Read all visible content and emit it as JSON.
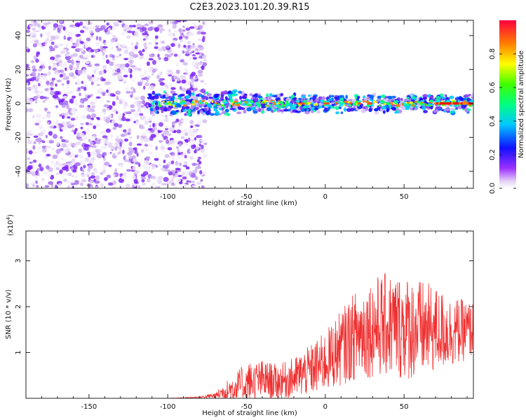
{
  "title": "C2E3.2023.101.20.39.R15",
  "chart_data": [
    {
      "type": "heatmap",
      "title": "C2E3.2023.101.20.39.R15",
      "xlabel": "Height of straight line (km)",
      "ylabel": "Frequency (Hz)",
      "xlim": [
        -190,
        94
      ],
      "ylim": [
        -50,
        49
      ],
      "xticks": [
        -150,
        -100,
        -50,
        0,
        50
      ],
      "yticks": [
        -40,
        -20,
        0,
        20,
        40
      ],
      "xtick_labels": [
        "-150",
        "-100",
        "-50",
        "0",
        "50"
      ],
      "ytick_labels": [
        "-40",
        "-20",
        "0",
        "20",
        "40"
      ],
      "features": {
        "noise_region_x": [
          -190,
          -82
        ],
        "signal_band_x": [
          -112,
          94
        ],
        "signal_center_freq_hz": 0,
        "max_amplitude_x": [
          70,
          94
        ]
      },
      "colorbar": {
        "label": "Normalized spectral amplitude",
        "range": [
          0.0,
          1.0
        ],
        "ticks": [
          0.0,
          0.2,
          0.4,
          0.6,
          0.8
        ],
        "tick_labels": [
          "0.0",
          "0.2",
          "0.4",
          "0.6",
          "0.8"
        ]
      }
    },
    {
      "type": "line",
      "xlabel": "Height of straight line (km)",
      "ylabel": "SNR (10 * v/v)",
      "scale_label": "(x10",
      "scale_exponent": "4",
      "scale_close": ")",
      "xlim": [
        -190,
        94
      ],
      "ylim": [
        0,
        3.65
      ],
      "xticks": [
        -150,
        -100,
        -50,
        0,
        50
      ],
      "yticks": [
        1,
        2,
        3
      ],
      "xtick_labels": [
        "-150",
        "-100",
        "-50",
        "0",
        "50"
      ],
      "ytick_labels": [
        "1",
        "2",
        "3"
      ],
      "line_color": "#ef3030",
      "envelope_x": [
        -190,
        -100,
        -80,
        -70,
        -60,
        -50,
        -40,
        -30,
        -20,
        -10,
        0,
        10,
        20,
        30,
        40,
        50,
        60,
        70,
        80,
        94
      ],
      "envelope_mean": [
        0.0,
        0.0,
        0.02,
        0.06,
        0.2,
        0.35,
        0.4,
        0.35,
        0.45,
        0.6,
        0.8,
        1.1,
        1.4,
        1.55,
        1.6,
        1.55,
        1.5,
        1.5,
        1.45,
        1.5
      ],
      "envelope_spread": [
        0.0,
        0.0,
        0.02,
        0.06,
        0.25,
        0.4,
        0.4,
        0.35,
        0.4,
        0.5,
        0.6,
        0.75,
        0.9,
        1.0,
        1.05,
        1.05,
        1.0,
        0.85,
        0.7,
        0.55
      ]
    }
  ]
}
